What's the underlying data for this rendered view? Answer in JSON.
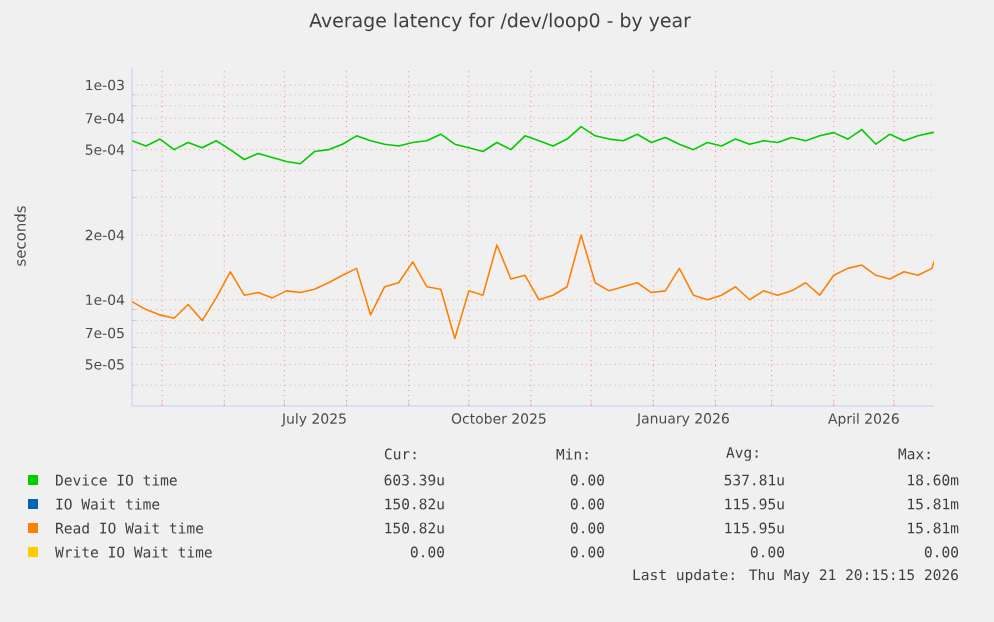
{
  "chart_data": {
    "type": "line",
    "title": "Average latency for /dev/loop0 - by year",
    "ylabel": "seconds",
    "log": true,
    "grid": true,
    "legend": "bottom",
    "xlim": [
      "2025-04-16",
      "2026-05-21"
    ],
    "ylim": [
      3.2e-05,
      0.0012
    ],
    "xticks": [
      {
        "value": "2025-05-01",
        "label": null
      },
      {
        "value": "2025-06-01",
        "label": null
      },
      {
        "value": "2025-07-01",
        "label": null
      },
      {
        "value": "2025-07-16",
        "label": "July 2025"
      },
      {
        "value": "2025-08-01",
        "label": null
      },
      {
        "value": "2025-09-01",
        "label": null
      },
      {
        "value": "2025-10-01",
        "label": null
      },
      {
        "value": "2025-10-16",
        "label": "October 2025"
      },
      {
        "value": "2025-11-01",
        "label": null
      },
      {
        "value": "2025-12-01",
        "label": null
      },
      {
        "value": "2026-01-01",
        "label": null
      },
      {
        "value": "2026-01-16",
        "label": "January 2026"
      },
      {
        "value": "2026-02-01",
        "label": null
      },
      {
        "value": "2026-03-01",
        "label": null
      },
      {
        "value": "2026-04-01",
        "label": null
      },
      {
        "value": "2026-04-16",
        "label": "April 2026"
      },
      {
        "value": "2026-05-01",
        "label": null
      }
    ],
    "yticks": [
      {
        "value": 5e-05,
        "label": "5e-05"
      },
      {
        "value": 7e-05,
        "label": "7e-05"
      },
      {
        "value": 0.0001,
        "label": "1e-04"
      },
      {
        "value": 0.0002,
        "label": "2e-04"
      },
      {
        "value": 0.0005,
        "label": "5e-04"
      },
      {
        "value": 0.0007,
        "label": "7e-04"
      },
      {
        "value": 0.001,
        "label": "1e-03"
      },
      {
        "value": 4e-05,
        "label": null
      },
      {
        "value": 6e-05,
        "label": null
      },
      {
        "value": 8e-05,
        "label": null
      },
      {
        "value": 9e-05,
        "label": null
      },
      {
        "value": 0.0003,
        "label": null
      },
      {
        "value": 0.0004,
        "label": null
      },
      {
        "value": 0.0006,
        "label": null
      },
      {
        "value": 0.0008,
        "label": null
      },
      {
        "value": 0.0009,
        "label": null
      }
    ],
    "x": [
      "2025-04-16",
      "2025-04-23",
      "2025-04-30",
      "2025-05-07",
      "2025-05-14",
      "2025-05-21",
      "2025-05-28",
      "2025-06-04",
      "2025-06-11",
      "2025-06-18",
      "2025-06-25",
      "2025-07-02",
      "2025-07-09",
      "2025-07-16",
      "2025-07-23",
      "2025-07-30",
      "2025-08-06",
      "2025-08-13",
      "2025-08-20",
      "2025-08-27",
      "2025-09-03",
      "2025-09-10",
      "2025-09-17",
      "2025-09-24",
      "2025-10-01",
      "2025-10-08",
      "2025-10-15",
      "2025-10-22",
      "2025-10-29",
      "2025-11-05",
      "2025-11-12",
      "2025-11-19",
      "2025-11-26",
      "2025-12-03",
      "2025-12-10",
      "2025-12-17",
      "2025-12-24",
      "2025-12-31",
      "2026-01-07",
      "2026-01-14",
      "2026-01-21",
      "2026-01-28",
      "2026-02-04",
      "2026-02-11",
      "2026-02-18",
      "2026-02-25",
      "2026-03-04",
      "2026-03-11",
      "2026-03-18",
      "2026-03-25",
      "2026-04-01",
      "2026-04-08",
      "2026-04-15",
      "2026-04-22",
      "2026-04-29",
      "2026-05-06",
      "2026-05-13",
      "2026-05-20",
      "2026-05-21"
    ],
    "series": [
      {
        "name": "Device IO time",
        "color": "#00cc00",
        "values": [
          0.00055,
          0.00052,
          0.00056,
          0.0005,
          0.00054,
          0.00051,
          0.00055,
          0.0005,
          0.00045,
          0.00048,
          0.00046,
          0.00044,
          0.00043,
          0.00049,
          0.0005,
          0.00053,
          0.00058,
          0.00055,
          0.00053,
          0.00052,
          0.00054,
          0.00055,
          0.00059,
          0.00053,
          0.00051,
          0.00049,
          0.00054,
          0.0005,
          0.00058,
          0.00055,
          0.00052,
          0.00056,
          0.00064,
          0.00058,
          0.00056,
          0.00055,
          0.00059,
          0.00054,
          0.00057,
          0.00053,
          0.0005,
          0.00054,
          0.00052,
          0.00056,
          0.00053,
          0.00055,
          0.00054,
          0.00057,
          0.00055,
          0.00058,
          0.0006,
          0.00056,
          0.00062,
          0.00053,
          0.00059,
          0.00055,
          0.00058,
          0.0006,
          0.000603
        ]
      },
      {
        "name": "IO Wait time",
        "color": "#0066b3",
        "values": [
          null,
          null,
          null,
          null,
          null,
          null,
          null,
          null,
          null,
          null,
          null,
          null,
          null,
          null,
          null,
          null,
          null,
          null,
          null,
          null,
          null,
          null,
          null,
          null,
          null,
          null,
          null,
          null,
          null,
          null,
          null,
          null,
          null,
          null,
          null,
          null,
          null,
          null,
          null,
          null,
          null,
          null,
          null,
          null,
          null,
          null,
          null,
          null,
          null,
          null,
          null,
          null,
          null,
          null,
          null,
          null,
          null,
          null,
          null
        ]
      },
      {
        "name": "Read IO Wait time",
        "color": "#ff8000",
        "values": [
          9.8e-05,
          9e-05,
          8.5e-05,
          8.2e-05,
          9.5e-05,
          8e-05,
          0.000102,
          0.000135,
          0.000105,
          0.000108,
          0.000102,
          0.00011,
          0.000108,
          0.000112,
          0.00012,
          0.00013,
          0.00014,
          8.5e-05,
          0.000115,
          0.00012,
          0.00015,
          0.000115,
          0.000112,
          6.6e-05,
          0.00011,
          0.000105,
          0.00018,
          0.000125,
          0.00013,
          0.0001,
          0.000105,
          0.000115,
          0.0002,
          0.00012,
          0.00011,
          0.000115,
          0.00012,
          0.000108,
          0.00011,
          0.00014,
          0.000105,
          0.0001,
          0.000105,
          0.000115,
          0.0001,
          0.00011,
          0.000105,
          0.00011,
          0.00012,
          0.000105,
          0.00013,
          0.00014,
          0.000145,
          0.00013,
          0.000125,
          0.000135,
          0.00013,
          0.00014,
          0.0001508
        ]
      },
      {
        "name": "Write IO Wait time",
        "color": "#ffcc00",
        "values": [
          null,
          null,
          null,
          null,
          null,
          null,
          null,
          null,
          null,
          null,
          null,
          null,
          null,
          null,
          null,
          null,
          null,
          null,
          null,
          null,
          null,
          null,
          null,
          null,
          null,
          null,
          null,
          null,
          null,
          null,
          null,
          null,
          null,
          null,
          null,
          null,
          null,
          null,
          null,
          null,
          null,
          null,
          null,
          null,
          null,
          null,
          null,
          null,
          null,
          null,
          null,
          null,
          null,
          null,
          null,
          null,
          null,
          null,
          null
        ]
      }
    ],
    "annotations": [
      "Cur:",
      "Min:",
      "Avg:",
      "Max:",
      "603.39u",
      "0.00",
      "537.81u",
      "18.60m",
      "150.82u",
      "0.00",
      "115.95u",
      "15.81m",
      "150.82u",
      "0.00",
      "115.95u",
      "15.81m",
      "0.00",
      "0.00",
      "0.00",
      "0.00",
      "Last update: Thu May 21 20:15:15 2026"
    ]
  }
}
